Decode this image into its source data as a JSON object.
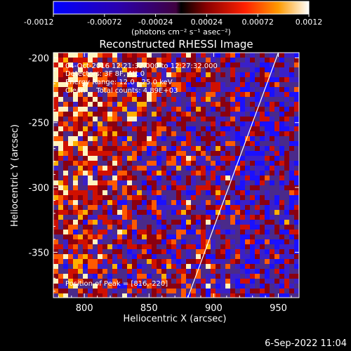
{
  "chart_data": {
    "type": "heatmap",
    "title": "Reconstructed RHESSI Image",
    "xlabel": "Heliocentric X (arcsec)",
    "ylabel": "Heliocentric Y (arcsec)",
    "xlim": [
      776,
      966
    ],
    "ylim": [
      -385,
      -196
    ],
    "xticks": [
      800,
      850,
      900,
      950
    ],
    "yticks": [
      -200,
      -250,
      -300,
      -350
    ],
    "colorbar": {
      "range": [
        -0.0012,
        0.0012
      ],
      "ticks": [
        "-0.0012",
        "-0.00072",
        "-0.00024",
        "0.00024",
        "0.00072",
        "0.0012"
      ],
      "unit_label": "(photons cm⁻² s⁻¹ asec⁻²)"
    },
    "annotations": {
      "time": "04-Oct-2016 12:21:32.000 to 12:27:32.000",
      "detectors": "Detectors: 3F 8F, Att 0",
      "energy": "Energy Range: 12.0 - 25.0 keV",
      "method": "Clean     Total counts: 4.89E+03",
      "peak": "Position of Peak = [816,-220]"
    },
    "limb_line": {
      "x": [
        880,
        950
      ],
      "y": [
        -385,
        -196
      ]
    },
    "grid": false
  },
  "footer": {
    "timestamp": "6-Sep-2022 11:04"
  }
}
